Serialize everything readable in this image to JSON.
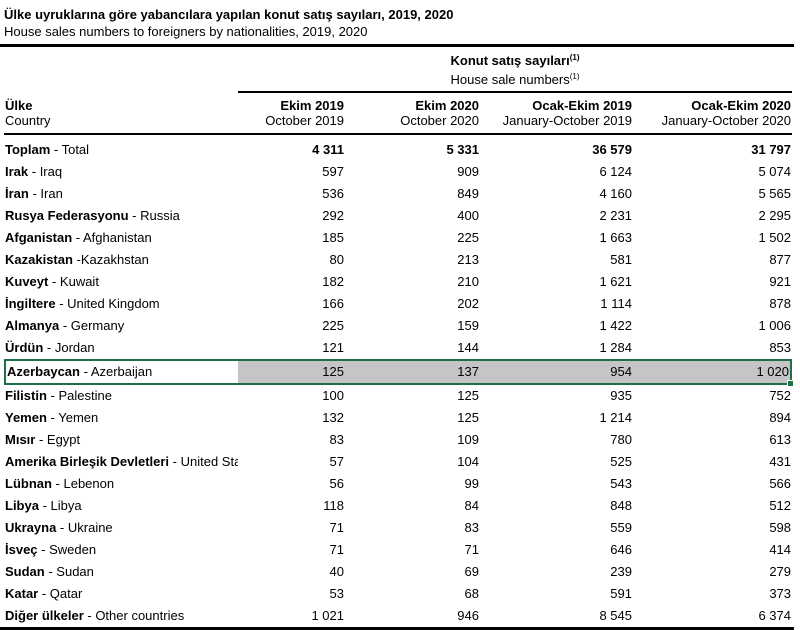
{
  "page": {
    "title_tr": "Ülke uyruklarına göre yabancılara yapılan konut satış sayıları, 2019, 2020",
    "title_en": "House sales numbers to foreigners by nationalities, 2019, 2020"
  },
  "table": {
    "group_header": {
      "tr": "Konut satış sayıları",
      "en": "House sale numbers",
      "footnote": "(1)"
    },
    "row_header": {
      "tr": "Ülke",
      "en": "Country"
    },
    "columns": [
      {
        "tr": "Ekim 2019",
        "en": "October 2019"
      },
      {
        "tr": "Ekim 2020",
        "en": "October 2020"
      },
      {
        "tr": "Ocak-Ekim 2019",
        "en": "January-October 2019"
      },
      {
        "tr": "Ocak-Ekim 2020",
        "en": "January-October 2020"
      }
    ],
    "rows": [
      {
        "tr": "Toplam",
        "rest": "- Total",
        "values": [
          "4 311",
          "5 331",
          "36 579",
          "31 797"
        ],
        "bold": true
      },
      {
        "tr": "Irak",
        "rest": "- Iraq",
        "values": [
          "597",
          "909",
          "6 124",
          "5 074"
        ]
      },
      {
        "tr": "İran",
        "rest": "- Iran",
        "values": [
          "536",
          "849",
          "4 160",
          "5 565"
        ]
      },
      {
        "tr": "Rusya Federasyonu",
        "rest": "- Russia",
        "values": [
          "292",
          "400",
          "2 231",
          "2 295"
        ]
      },
      {
        "tr": "Afganistan",
        "rest": "- Afghanistan",
        "values": [
          "185",
          "225",
          "1 663",
          "1 502"
        ]
      },
      {
        "tr": "Kazakistan",
        "rest": "-Kazakhstan",
        "values": [
          "80",
          "213",
          "581",
          "877"
        ]
      },
      {
        "tr": "Kuveyt",
        "rest": "- Kuwait",
        "values": [
          "182",
          "210",
          "1 621",
          "921"
        ]
      },
      {
        "tr": "İngiltere",
        "rest": "- United Kingdom",
        "values": [
          "166",
          "202",
          "1 114",
          "878"
        ]
      },
      {
        "tr": "Almanya",
        "rest": "- Germany",
        "values": [
          "225",
          "159",
          "1 422",
          "1 006"
        ]
      },
      {
        "tr": "Ürdün",
        "rest": "- Jordan",
        "values": [
          "121",
          "144",
          "1 284",
          "853"
        ]
      },
      {
        "tr": "Azerbaycan",
        "rest": "- Azerbaijan",
        "values": [
          "125",
          "137",
          "954",
          "1 020"
        ],
        "highlighted": true
      },
      {
        "tr": "Filistin",
        "rest": "- Palestine",
        "values": [
          "100",
          "125",
          "935",
          "752"
        ]
      },
      {
        "tr": "Yemen",
        "rest": "- Yemen",
        "values": [
          "132",
          "125",
          "1 214",
          "894"
        ]
      },
      {
        "tr": "Mısır",
        "rest": "- Egypt",
        "values": [
          "83",
          "109",
          "780",
          "613"
        ]
      },
      {
        "tr": "Amerika Birleşik Devletleri",
        "rest": "- United States",
        "values": [
          "57",
          "104",
          "525",
          "431"
        ]
      },
      {
        "tr": "Lübnan",
        "rest": "- Lebenon",
        "values": [
          "56",
          "99",
          "543",
          "566"
        ]
      },
      {
        "tr": "Libya",
        "rest": "- Libya",
        "values": [
          "118",
          "84",
          "848",
          "512"
        ]
      },
      {
        "tr": "Ukrayna",
        "rest": "- Ukraine",
        "values": [
          "71",
          "83",
          "559",
          "598"
        ]
      },
      {
        "tr": "İsveç",
        "rest": "- Sweden",
        "values": [
          "71",
          "71",
          "646",
          "414"
        ]
      },
      {
        "tr": "Sudan",
        "rest": "- Sudan",
        "values": [
          "40",
          "69",
          "239",
          "279"
        ]
      },
      {
        "tr": "Katar",
        "rest": "- Qatar",
        "values": [
          "53",
          "68",
          "591",
          "373"
        ]
      },
      {
        "tr": "Diğer ülkeler",
        "rest": "- Other countries",
        "values": [
          "1 021",
          "946",
          "8 545",
          "6 374"
        ]
      }
    ]
  },
  "colors": {
    "selection_green": "#1F7145",
    "highlight_gray": "#C5C5C5",
    "rule_black": "#000000"
  }
}
